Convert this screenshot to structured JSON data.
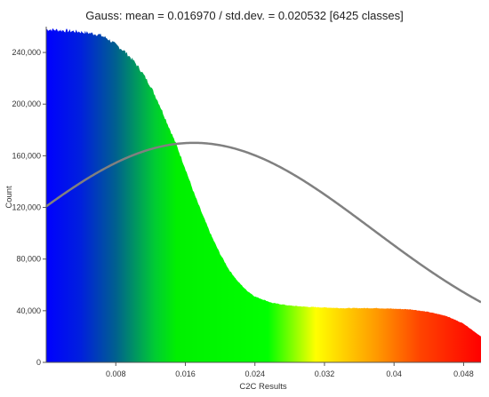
{
  "chart_data": {
    "type": "histogram",
    "title": "Gauss: mean = 0.016970 / std.dev. = 0.020532 [6425 classes]",
    "xlabel": "C2C Results",
    "ylabel": "Count",
    "xlim": [
      0,
      0.05
    ],
    "ylim": [
      0,
      260000
    ],
    "x_ticks": [
      {
        "value": 0.008,
        "label": "0.008"
      },
      {
        "value": 0.016,
        "label": "0.016"
      },
      {
        "value": 0.024,
        "label": "0.024"
      },
      {
        "value": 0.032,
        "label": "0.032"
      },
      {
        "value": 0.04,
        "label": "0.04"
      },
      {
        "value": 0.048,
        "label": "0.048"
      }
    ],
    "y_ticks": [
      {
        "value": 0,
        "label": "0"
      },
      {
        "value": 40000,
        "label": "40,000"
      },
      {
        "value": 80000,
        "label": "80,000"
      },
      {
        "value": 120000,
        "label": "120,000"
      },
      {
        "value": 160000,
        "label": "160,000"
      },
      {
        "value": 200000,
        "label": "200,000"
      },
      {
        "value": 240000,
        "label": "240,000"
      }
    ],
    "histogram_envelope": {
      "x": [
        0,
        0.002,
        0.004,
        0.006,
        0.007,
        0.008,
        0.009,
        0.01,
        0.011,
        0.012,
        0.013,
        0.014,
        0.015,
        0.016,
        0.017,
        0.018,
        0.019,
        0.02,
        0.021,
        0.022,
        0.023,
        0.024,
        0.026,
        0.028,
        0.03,
        0.032,
        0.034,
        0.036,
        0.038,
        0.04,
        0.042,
        0.044,
        0.046,
        0.048,
        0.05
      ],
      "y": [
        258000,
        257000,
        256000,
        254000,
        251000,
        246000,
        241000,
        234000,
        225000,
        214000,
        200000,
        184000,
        168000,
        150000,
        131000,
        114000,
        98000,
        84000,
        72000,
        63000,
        56000,
        51000,
        46000,
        44000,
        43000,
        42500,
        42000,
        42000,
        42000,
        41500,
        41000,
        39000,
        36000,
        30000,
        20000
      ]
    },
    "color_scale": {
      "stops": [
        {
          "x": 0,
          "color": "#0000ff"
        },
        {
          "x": 0.004,
          "color": "#0020dd"
        },
        {
          "x": 0.008,
          "color": "#00608f"
        },
        {
          "x": 0.0125,
          "color": "#00cc33"
        },
        {
          "x": 0.015,
          "color": "#00f000"
        },
        {
          "x": 0.0255,
          "color": "#00ff00"
        },
        {
          "x": 0.031,
          "color": "#ffff00"
        },
        {
          "x": 0.038,
          "color": "#ff9900"
        },
        {
          "x": 0.043,
          "color": "#ff4400"
        },
        {
          "x": 0.05,
          "color": "#ff0000"
        }
      ]
    },
    "gauss_curve": {
      "mean": 0.01697,
      "std_dev": 0.020532,
      "peak": 170000,
      "color": "#808080"
    },
    "grid": false,
    "legend": "none"
  }
}
